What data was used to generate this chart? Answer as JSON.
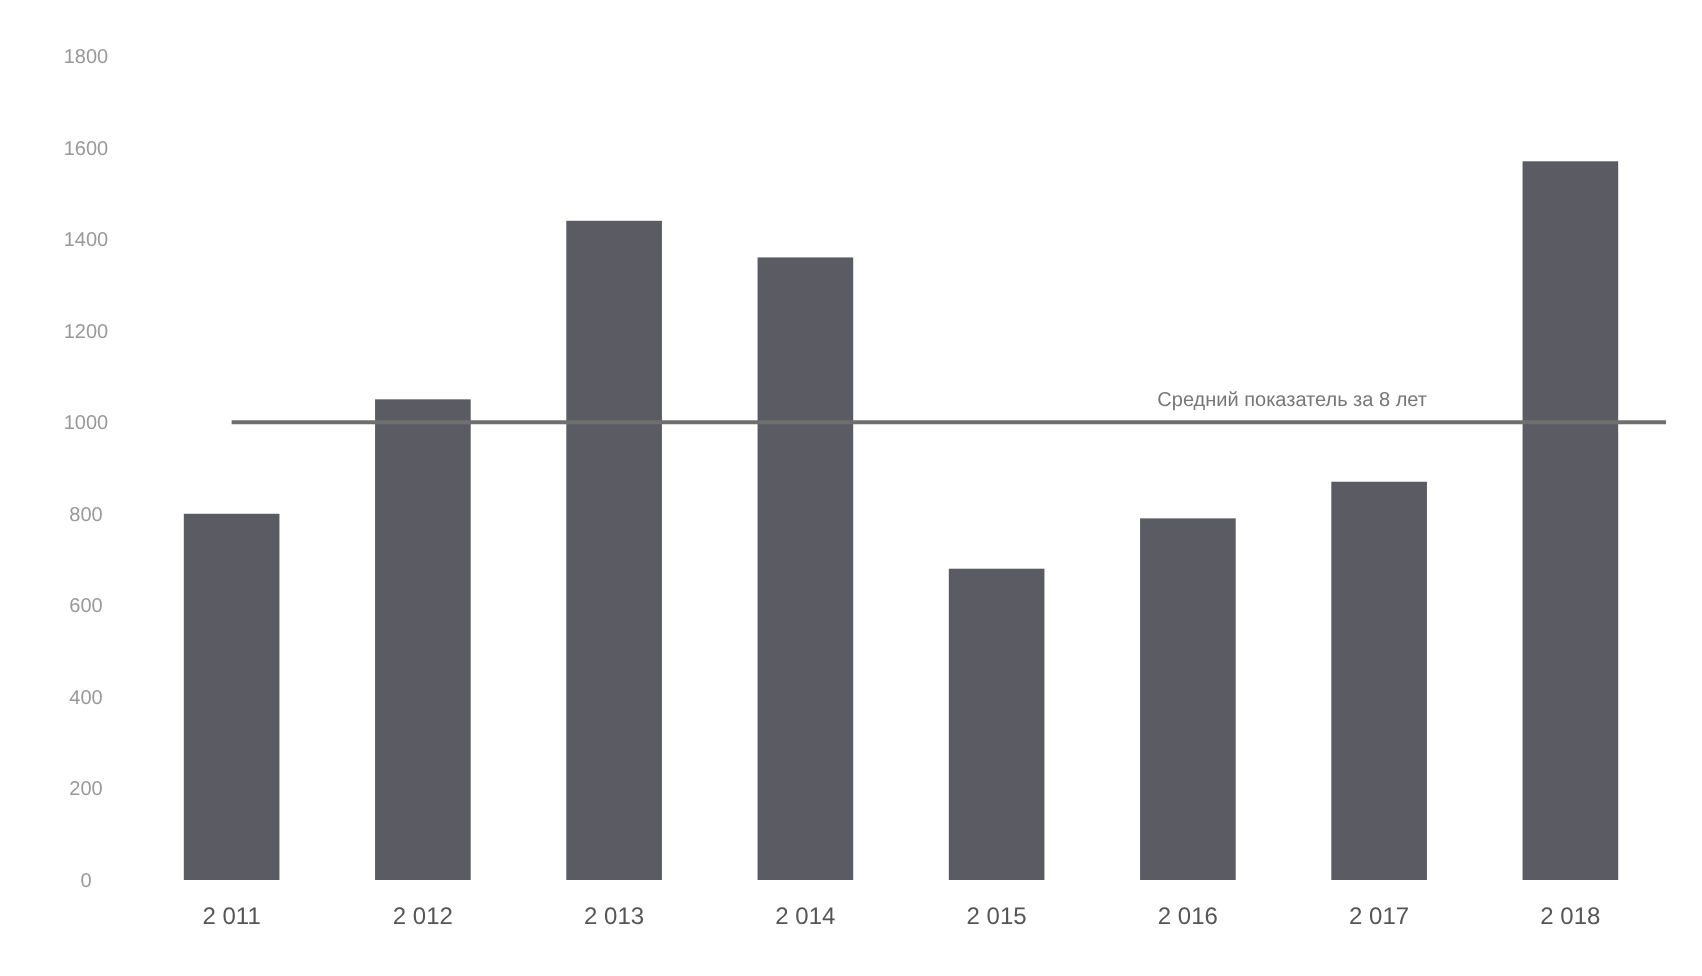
{
  "chart_data": {
    "type": "bar",
    "categories": [
      "2 011",
      "2 012",
      "2 013",
      "2 014",
      "2 015",
      "2 016",
      "2 017",
      "2 018"
    ],
    "values": [
      800,
      1050,
      1440,
      1360,
      680,
      790,
      870,
      1570
    ],
    "color": "#5b5b63",
    "ylim": [
      0,
      1800
    ],
    "yticks": [
      0,
      200,
      400,
      600,
      800,
      1000,
      1200,
      1400,
      1600,
      1800
    ],
    "ref_lines": [
      {
        "axis": "y",
        "value": 1000,
        "label": "Средний показатель за 8 лет",
        "color": "#6f6f6f"
      }
    ]
  }
}
